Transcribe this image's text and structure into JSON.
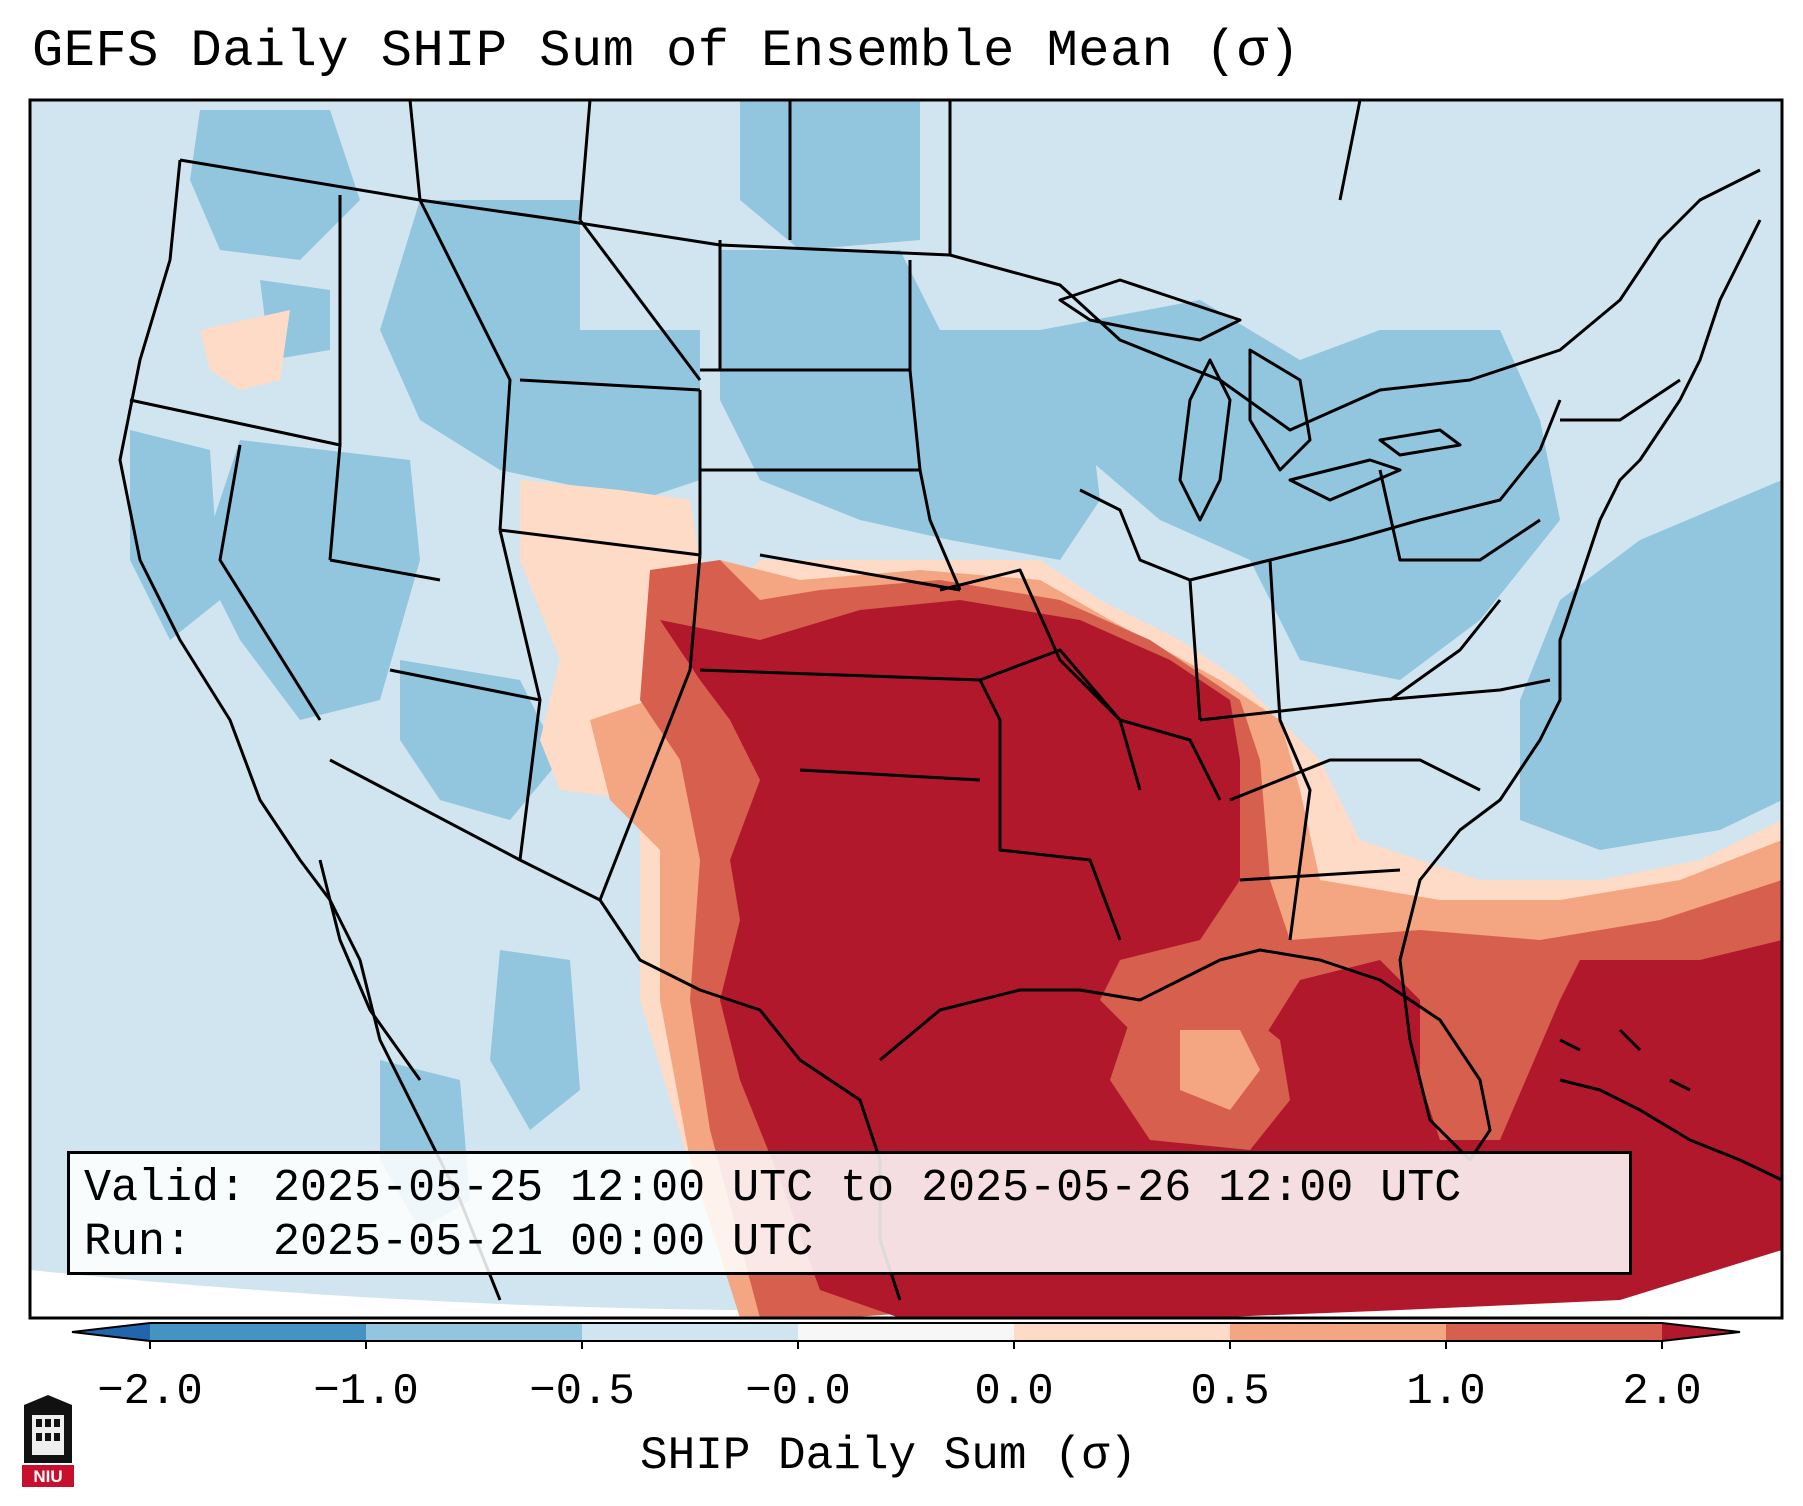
{
  "title": "GEFS Daily SHIP Sum of Ensemble Mean (σ)",
  "info": {
    "valid_label": "Valid:",
    "valid_value": "2025-05-25 12:00 UTC to 2025-05-26 12:00 UTC",
    "run_label": "Run:",
    "run_value": "2025-05-21 00:00 UTC"
  },
  "colorbar": {
    "label": "SHIP Daily Sum (σ)",
    "ticks": [
      "−2.0",
      "−1.0",
      "−0.5",
      "−0.0",
      "0.0",
      "0.5",
      "1.0",
      "2.0"
    ],
    "bins": [
      {
        "range": "-2.0 to -1.0",
        "color": "#4393c3"
      },
      {
        "range": "-1.0 to -0.5",
        "color": "#92c5de"
      },
      {
        "range": "-0.5 to -0.0",
        "color": "#d1e5f0"
      },
      {
        "range": "-0.0 to 0.0",
        "color": "#f7f7f7"
      },
      {
        "range": "0.0 to 0.5",
        "color": "#fddbc7"
      },
      {
        "range": "0.5 to 1.0",
        "color": "#f4a582"
      },
      {
        "range": "1.0 to 2.0",
        "color": "#d6604d"
      }
    ],
    "under_color": "#2166ac",
    "over_color": "#b2182b"
  },
  "colors": {
    "strong_positive": "#b2182b",
    "moderate_positive": "#d6604d",
    "weak_positive": "#f4a582",
    "slight_positive": "#fddbc7",
    "slight_negative": "#d1e5f0",
    "weak_negative": "#92c5de",
    "moderate_negative": "#4393c3"
  },
  "logo": {
    "icon": "niu-seal-icon",
    "text": "NIU"
  }
}
